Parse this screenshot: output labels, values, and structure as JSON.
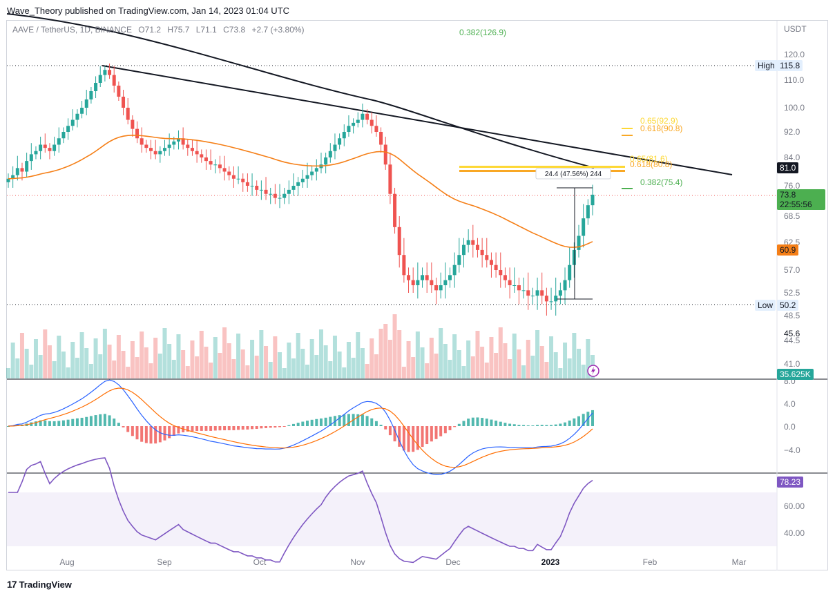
{
  "header": {
    "text": "Wave_Theory published on TradingView.com, Jan 14, 2023 01:04 UTC"
  },
  "footer": {
    "brand": "TradingView",
    "logo_glyph": "17"
  },
  "symbol_bar": {
    "symbol": "AAVE / TetherUS, 1D, BINANCE",
    "open_label": "O",
    "open": "71.2",
    "high_label": "H",
    "high": "75.7",
    "low_label": "L",
    "low": "71.1",
    "close_label": "C",
    "close": "73.8",
    "change": "+2.7 (+3.80%)"
  },
  "price_axis": {
    "currency": "USDT",
    "ticks": [
      "120.0",
      "110.0",
      "100.0",
      "92.0",
      "84.0",
      "76.0",
      "68.5",
      "62.5",
      "57.0",
      "52.5",
      "48.5"
    ]
  },
  "volume_axis": {
    "ticks": [
      "45.6",
      "44.5",
      "41.0"
    ]
  },
  "macd_axis": {
    "ticks": [
      "8.0",
      "4.0",
      "0.0",
      "−4.0"
    ]
  },
  "rsi_axis": {
    "ticks": [
      "60.00",
      "40.00"
    ]
  },
  "time_axis": {
    "labels": [
      "Aug",
      "Sep",
      "Oct",
      "Nov",
      "Dec",
      "2023",
      "Feb",
      "Mar"
    ]
  },
  "labels": {
    "high_tag": "High",
    "high_value": "115.8",
    "low_tag": "Low",
    "low_value": "50.2",
    "black_line_value": "81.0",
    "last_price": "73.8",
    "countdown": "22:55:56",
    "ema_value": "60.9",
    "volume_value": "35.625K",
    "rsi_value": "78.23",
    "measure": "24.4 (47.56%) 244"
  },
  "fib_labels": {
    "top": "0.382(126.9)",
    "f065_upper": "0.65(92.9)",
    "f0618_upper": "0.618(90.8)",
    "f065_lower": "0.65(81.6)",
    "f0618_lower": "0.618(80.8)",
    "f0382_lower": "0.382(75.4)"
  },
  "colors": {
    "up": "#26a69a",
    "down": "#ef5350",
    "ema": "#f57f17",
    "macd": "#2962ff",
    "signal": "#ff6d00",
    "rsi": "#7e57c2",
    "fib_green": "#4caf50",
    "fib_gold": "#f9a825",
    "fib_yellow": "#fdd835"
  },
  "chart_data": {
    "type": "candlestick",
    "symbol": "AAVE / TetherUS",
    "interval": "1D",
    "ylabel": "USDT",
    "ylim": [
      48.5,
      120.0
    ],
    "close_series": [
      78,
      79,
      81,
      80,
      83,
      85,
      86,
      88,
      87,
      86,
      88,
      90,
      92,
      94,
      96,
      98,
      100,
      103,
      106,
      109,
      112,
      114,
      112,
      108,
      104,
      100,
      96,
      93,
      90,
      88,
      87,
      86,
      85,
      86,
      87,
      88,
      89,
      90,
      88,
      87,
      86,
      85,
      84,
      83,
      82,
      82,
      81,
      80,
      79,
      78,
      78,
      77,
      76,
      76,
      75,
      75,
      74,
      74,
      73,
      73,
      74,
      75,
      76,
      77,
      78,
      79,
      80,
      81,
      82,
      84,
      86,
      88,
      90,
      92,
      94,
      95,
      96,
      98,
      96,
      94,
      92,
      88,
      82,
      74,
      66,
      60,
      56,
      55,
      54,
      55,
      56,
      55,
      54,
      53,
      54,
      55,
      56,
      58,
      60,
      62,
      63,
      62,
      61,
      60,
      59,
      58,
      57,
      56,
      55,
      54,
      54,
      53,
      53,
      52,
      52,
      53,
      52,
      51,
      51,
      52,
      53,
      55,
      58,
      61,
      64,
      68,
      71.2,
      73.8
    ],
    "ema_end": 60.9,
    "black_line_end": 81.0,
    "session_high": 115.8,
    "session_low": 50.2,
    "measure_range": [
      51.3,
      75.7
    ],
    "measure_change": 24.4,
    "measure_percent": 47.56,
    "fib_levels": [
      {
        "ratio": 0.382,
        "price": 126.9
      },
      {
        "ratio": 0.65,
        "price": 92.9
      },
      {
        "ratio": 0.618,
        "price": 90.8
      },
      {
        "ratio": 0.65,
        "price": 81.6
      },
      {
        "ratio": 0.618,
        "price": 80.8
      },
      {
        "ratio": 0.382,
        "price": 75.4
      }
    ],
    "rsi_last": 78.23,
    "volume_last": "35.625K"
  }
}
